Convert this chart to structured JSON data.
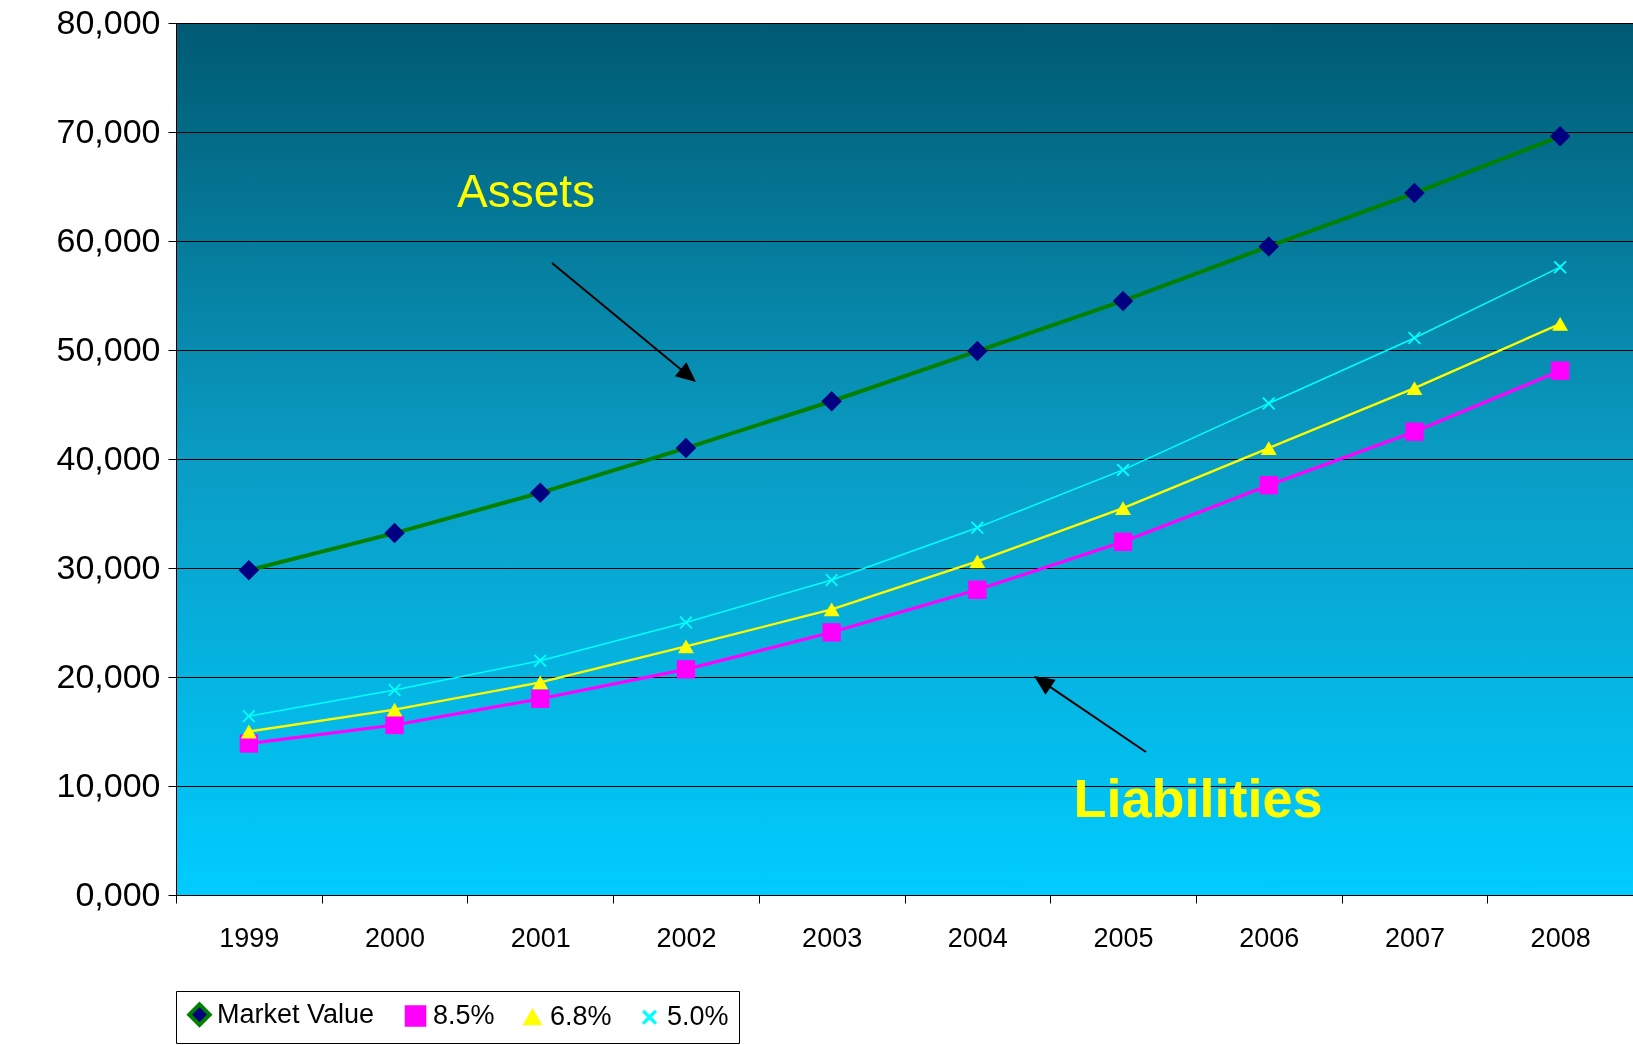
{
  "chart_data": {
    "type": "line",
    "categories": [
      "1999",
      "2000",
      "2001",
      "2002",
      "2003",
      "2004",
      "2005",
      "2006",
      "2007",
      "2008"
    ],
    "series": [
      {
        "name": "Market Value",
        "color": "#008000",
        "marker": "diamond",
        "values": [
          29800,
          33200,
          36900,
          41000,
          45300,
          49900,
          54500,
          59500,
          64400,
          69600
        ]
      },
      {
        "name": "8.5%",
        "color": "#ff00ff",
        "marker": "square",
        "values": [
          13900,
          15600,
          18000,
          20700,
          24100,
          28000,
          32400,
          37600,
          42500,
          48100
        ]
      },
      {
        "name": "6.8%",
        "color": "#ffff00",
        "marker": "triangle",
        "values": [
          15000,
          17000,
          19500,
          22800,
          26200,
          30600,
          35500,
          41000,
          46500,
          52400
        ]
      },
      {
        "name": "5.0%",
        "color": "#00ffff",
        "marker": "cross",
        "values": [
          16400,
          18800,
          21500,
          25000,
          28900,
          33700,
          39000,
          45100,
          51100,
          57600
        ]
      }
    ],
    "ylim": [
      0,
      80000
    ],
    "yticks": [
      {
        "value": 0,
        "label": "0,000"
      },
      {
        "value": 10000,
        "label": "10,000"
      },
      {
        "value": 20000,
        "label": "20,000"
      },
      {
        "value": 30000,
        "label": "30,000"
      },
      {
        "value": 40000,
        "label": "40,000"
      },
      {
        "value": 50000,
        "label": "50,000"
      },
      {
        "value": 60000,
        "label": "60,000"
      },
      {
        "value": 70000,
        "label": "70,000"
      },
      {
        "value": 80000,
        "label": "80,000"
      }
    ],
    "grid": "y",
    "legend": "bottom",
    "annotations": [
      "Assets",
      "Liabilities"
    ]
  }
}
